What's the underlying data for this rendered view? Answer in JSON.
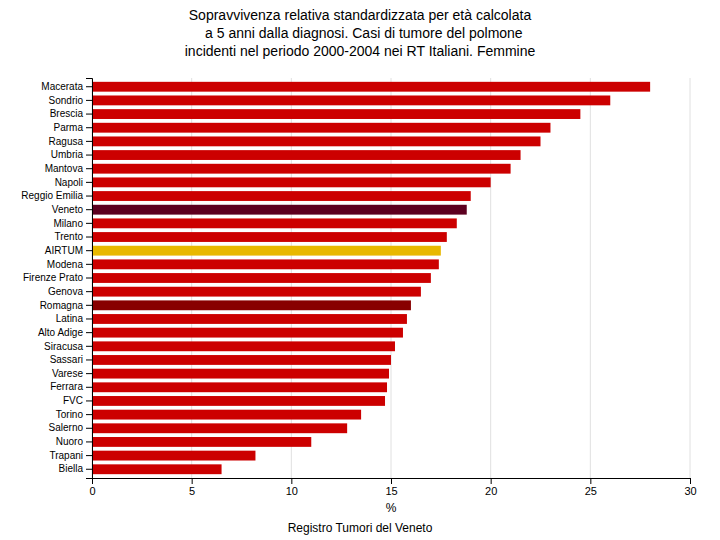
{
  "chart_data": {
    "type": "bar",
    "orientation": "horizontal",
    "title": "Sopravvivenza relativa standardizzata per età calcolata\n  a 5 anni dalla diagnosi. Casi di tumore del polmone\nincidenti nel periodo 2000-2004 nei RT Italiani. Femmine",
    "x_label": "%",
    "footer": "Registro Tumori del Veneto",
    "categories": [
      "Macerata",
      "Sondrio",
      "Brescia",
      "Parma",
      "Ragusa",
      "Umbria",
      "Mantova",
      "Napoli",
      "Reggio Emilia",
      "Veneto",
      "Milano",
      "Trento",
      "AIRTUM",
      "Modena",
      "Firenze Prato",
      "Genova",
      "Romagna",
      "Latina",
      "Alto Adige",
      "Siracusa",
      "Sassari",
      "Varese",
      "Ferrara",
      "FVC",
      "Torino",
      "Salerno",
      "Nuoro",
      "Trapani",
      "Biella"
    ],
    "values": [
      28.0,
      26.0,
      24.5,
      23.0,
      22.5,
      21.5,
      21.0,
      20.0,
      19.0,
      18.8,
      18.3,
      17.8,
      17.5,
      17.4,
      17.0,
      16.5,
      16.0,
      15.8,
      15.6,
      15.2,
      15.0,
      14.9,
      14.8,
      14.7,
      13.5,
      12.8,
      11.0,
      8.2,
      6.5
    ],
    "colors": [
      "#cc0000",
      "#cc0000",
      "#cc0000",
      "#cc0000",
      "#cc0000",
      "#cc0000",
      "#cc0000",
      "#cc0000",
      "#cc0000",
      "#5c0020",
      "#cc0000",
      "#cc0000",
      "#e8b800",
      "#cc0000",
      "#cc0000",
      "#cc0000",
      "#880000",
      "#cc0000",
      "#cc0000",
      "#cc0000",
      "#cc0000",
      "#cc0000",
      "#cc0000",
      "#cc0000",
      "#cc0000",
      "#cc0000",
      "#cc0000",
      "#cc0000",
      "#cc0000"
    ],
    "xlim": [
      0,
      30
    ],
    "xticks": [
      0,
      5,
      10,
      15,
      20,
      25,
      30
    ],
    "grid": true
  }
}
